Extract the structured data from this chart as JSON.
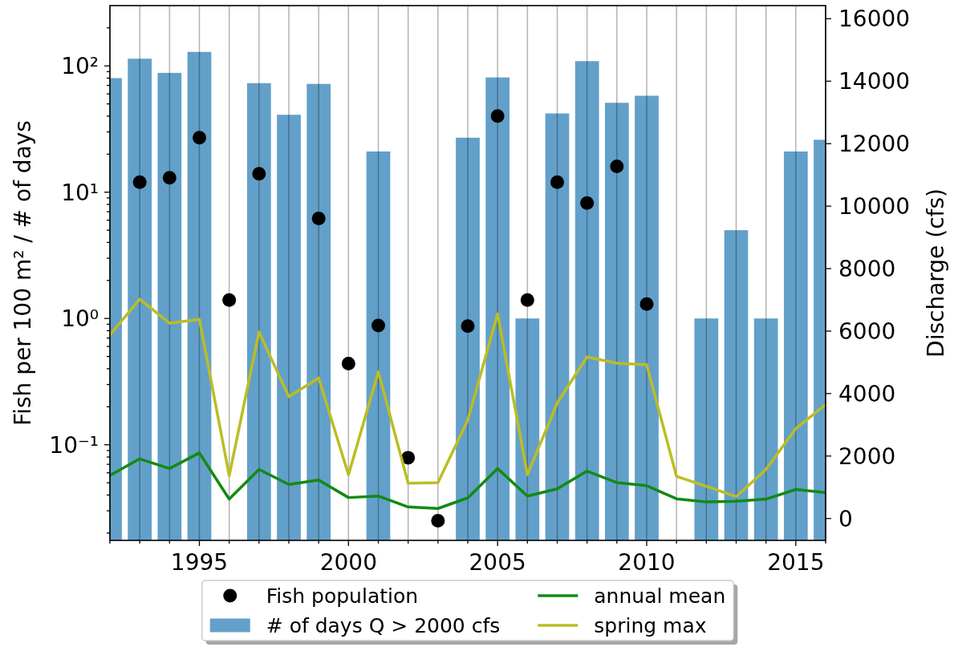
{
  "chart_data": {
    "type": "bar",
    "ylabel": "Fish per 100 m² / # of days",
    "y2label": "Discharge (cfs)",
    "x": [
      1992,
      1993,
      1994,
      1995,
      1996,
      1997,
      1998,
      1999,
      2000,
      2001,
      2002,
      2003,
      2004,
      2005,
      2006,
      2007,
      2008,
      2009,
      2010,
      2011,
      2012,
      2013,
      2014,
      2015,
      2016
    ],
    "series": [
      {
        "name": "Fish population",
        "type": "scatter",
        "marker": "circle",
        "color": "#000000",
        "values": [
          null,
          12,
          13,
          27,
          1.4,
          14,
          null,
          6.2,
          0.44,
          0.88,
          0.079,
          0.025,
          0.87,
          40,
          1.4,
          12,
          8.2,
          16,
          1.3,
          null,
          null,
          null,
          null,
          null,
          null
        ]
      },
      {
        "name": "# of days Q > 2000 cfs",
        "color": "#62a0ca",
        "values": [
          80,
          114,
          88,
          129,
          null,
          73,
          41,
          72,
          null,
          21,
          null,
          null,
          27,
          81,
          1,
          42,
          109,
          51,
          58,
          null,
          1,
          5,
          1,
          21,
          26
        ]
      },
      {
        "name": "annual mean",
        "type": "line",
        "axis": "y2",
        "color": "#138a13",
        "values": [
          1380,
          1910,
          1600,
          2100,
          620,
          1570,
          1090,
          1230,
          670,
          720,
          370,
          320,
          660,
          1600,
          720,
          950,
          1520,
          1150,
          1050,
          630,
          530,
          550,
          620,
          930,
          830
        ]
      },
      {
        "name": "spring max",
        "type": "line",
        "axis": "y2",
        "color": "#bcbd22",
        "values": [
          5880,
          7020,
          6250,
          6380,
          1370,
          5970,
          3900,
          4500,
          1400,
          4700,
          1130,
          1150,
          3150,
          6550,
          1400,
          3700,
          5170,
          4970,
          4920,
          1350,
          1030,
          700,
          1570,
          2880,
          3650
        ]
      }
    ],
    "xlim": [
      1992,
      2016
    ],
    "xticks": [
      {
        "value": 1992,
        "label": null
      },
      {
        "value": 1993,
        "label": null
      },
      {
        "value": 1994,
        "label": null
      },
      1995,
      {
        "value": 1996,
        "label": null
      },
      {
        "value": 1997,
        "label": null
      },
      {
        "value": 1998,
        "label": null
      },
      {
        "value": 1999,
        "label": null
      },
      2000,
      {
        "value": 2001,
        "label": null
      },
      {
        "value": 2002,
        "label": null
      },
      {
        "value": 2003,
        "label": null
      },
      {
        "value": 2004,
        "label": null
      },
      2005,
      {
        "value": 2006,
        "label": null
      },
      {
        "value": 2007,
        "label": null
      },
      {
        "value": 2008,
        "label": null
      },
      {
        "value": 2009,
        "label": null
      },
      2010,
      {
        "value": 2011,
        "label": null
      },
      {
        "value": 2012,
        "label": null
      },
      {
        "value": 2013,
        "label": null
      },
      {
        "value": 2014,
        "label": null
      },
      2015,
      {
        "value": 2016,
        "label": null
      }
    ],
    "ylim": [
      0.0175,
      300
    ],
    "log": "y",
    "yticks": [
      {
        "value": 0.02,
        "label": null
      },
      {
        "value": 0.03,
        "label": null
      },
      {
        "value": 0.04,
        "label": null
      },
      {
        "value": 0.05,
        "label": null
      },
      {
        "value": 0.06,
        "label": null
      },
      {
        "value": 0.07,
        "label": null
      },
      {
        "value": 0.08,
        "label": null
      },
      {
        "value": 0.09,
        "label": null
      },
      {
        "value": 0.1,
        "label": "10⁻¹"
      },
      {
        "value": 0.2,
        "label": null
      },
      {
        "value": 0.3,
        "label": null
      },
      {
        "value": 0.4,
        "label": null
      },
      {
        "value": 0.5,
        "label": null
      },
      {
        "value": 0.6,
        "label": null
      },
      {
        "value": 0.7,
        "label": null
      },
      {
        "value": 0.8,
        "label": null
      },
      {
        "value": 0.9,
        "label": null
      },
      {
        "value": 1,
        "label": "10⁰"
      },
      {
        "value": 2,
        "label": null
      },
      {
        "value": 3,
        "label": null
      },
      {
        "value": 4,
        "label": null
      },
      {
        "value": 5,
        "label": null
      },
      {
        "value": 6,
        "label": null
      },
      {
        "value": 7,
        "label": null
      },
      {
        "value": 8,
        "label": null
      },
      {
        "value": 9,
        "label": null
      },
      {
        "value": 10,
        "label": "10¹"
      },
      {
        "value": 20,
        "label": null
      },
      {
        "value": 30,
        "label": null
      },
      {
        "value": 40,
        "label": null
      },
      {
        "value": 50,
        "label": null
      },
      {
        "value": 60,
        "label": null
      },
      {
        "value": 70,
        "label": null
      },
      {
        "value": 80,
        "label": null
      },
      {
        "value": 90,
        "label": null
      },
      {
        "value": 100,
        "label": "10²"
      },
      {
        "value": 200,
        "label": null
      }
    ],
    "y2lim": [
      -700,
      16420
    ],
    "y2ticks": [
      0,
      2000,
      4000,
      6000,
      8000,
      10000,
      12000,
      14000,
      16000
    ],
    "grid": "x",
    "legend": "bottom"
  }
}
